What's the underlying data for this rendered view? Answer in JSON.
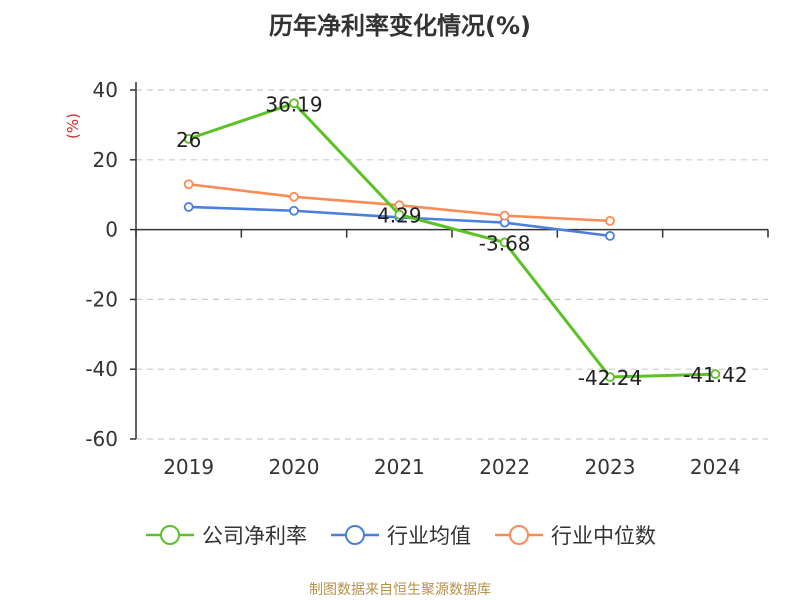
{
  "chart_data": {
    "type": "line",
    "title": "历年净利率变化情况(%)",
    "ylabel": "(%)",
    "categories": [
      "2019",
      "2020",
      "2021",
      "2022",
      "2023",
      "2024"
    ],
    "ylim": [
      -60,
      40
    ],
    "yticks": [
      40,
      20,
      0,
      -20,
      -40,
      -60
    ],
    "grid": true,
    "legend_position": "bottom",
    "series": [
      {
        "name": "公司净利率",
        "color": "#5cc125",
        "values": [
          26,
          36.19,
          4.29,
          -3.68,
          -42.24,
          -41.42
        ],
        "show_labels": true
      },
      {
        "name": "行业均值",
        "color": "#4a7fdc",
        "values": [
          6.5,
          5.4,
          3.5,
          2,
          -1.8,
          null
        ],
        "show_labels": false
      },
      {
        "name": "行业中位数",
        "color": "#f88c56",
        "values": [
          13,
          9.4,
          7,
          4,
          2.5,
          null
        ],
        "show_labels": false
      }
    ],
    "data_labels": [
      "26",
      "36.19",
      "4.29",
      "-3.68",
      "-42.24",
      "-41.42"
    ]
  },
  "source": "制图数据来自恒生聚源数据库"
}
